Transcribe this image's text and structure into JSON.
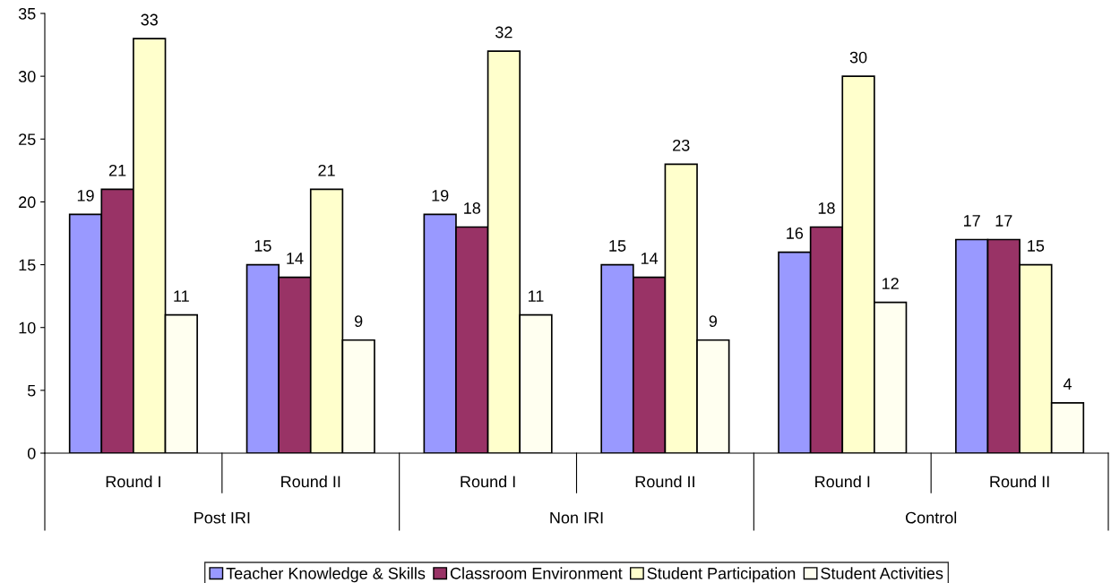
{
  "chart_data": {
    "type": "bar",
    "categories": [
      "Round I",
      "Round II",
      "Round I",
      "Round II",
      "Round I",
      "Round II"
    ],
    "annotations": [
      "Post IRI",
      "Non IRI",
      "Control"
    ],
    "series": [
      {
        "name": "Teacher Knowledge & Skills",
        "color": "#9999ff",
        "values": [
          19,
          15,
          19,
          15,
          16,
          17
        ]
      },
      {
        "name": "Classroom Environment",
        "color": "#993366",
        "values": [
          21,
          14,
          18,
          14,
          18,
          17
        ]
      },
      {
        "name": "Student Participation",
        "color": "#ffffcc",
        "values": [
          33,
          21,
          32,
          23,
          30,
          15
        ]
      },
      {
        "name": "Student Activities",
        "color": "#fffff0",
        "values": [
          11,
          9,
          11,
          9,
          12,
          4
        ]
      }
    ],
    "ylim": [
      0,
      35
    ],
    "yticks": [
      0,
      5,
      10,
      15,
      20,
      25,
      30,
      35
    ],
    "grid": false,
    "legend": "bottom",
    "data_labels": true
  }
}
